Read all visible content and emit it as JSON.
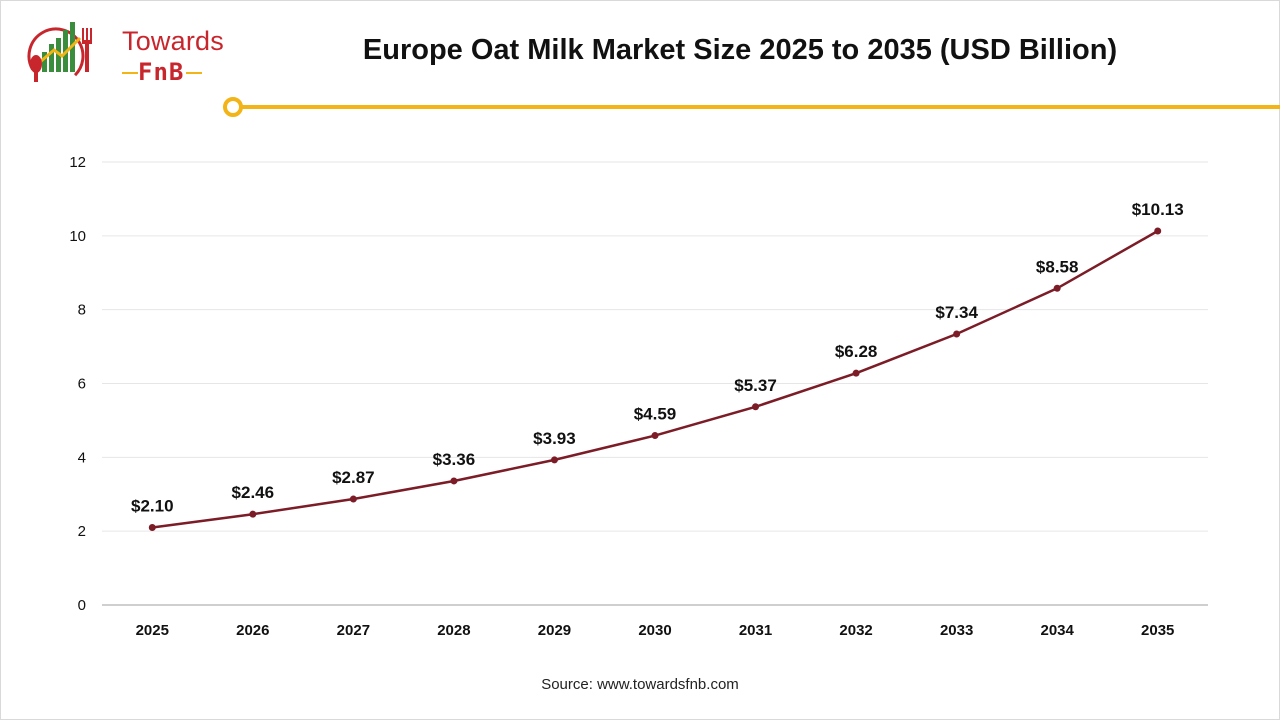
{
  "logo": {
    "line1": "Towards",
    "line2": "FnB",
    "colors": {
      "red": "#c8262d",
      "green": "#3a8d3c",
      "gold": "#f2b416"
    }
  },
  "title": "Europe Oat Milk Market Size 2025 to 2035 (USD Billion)",
  "source": "Source: www.towardsfnb.com",
  "colors": {
    "accent": "#f2b416",
    "line": "#7b1c26",
    "grid": "#e6e6e6"
  },
  "chart_data": {
    "type": "line",
    "title": "Europe Oat Milk Market Size 2025 to 2035 (USD Billion)",
    "xlabel": "",
    "ylabel": "",
    "categories": [
      "2025",
      "2026",
      "2027",
      "2028",
      "2029",
      "2030",
      "2031",
      "2032",
      "2033",
      "2034",
      "2035"
    ],
    "values": [
      2.1,
      2.46,
      2.87,
      3.36,
      3.93,
      4.59,
      5.37,
      6.28,
      7.34,
      8.58,
      10.13
    ],
    "data_labels": [
      "$2.10",
      "$2.46",
      "$2.87",
      "$3.36",
      "$3.93",
      "$4.59",
      "$5.37",
      "$6.28",
      "$7.34",
      "$8.58",
      "$10.13"
    ],
    "ylim": [
      0,
      12
    ],
    "yticks": [
      "0",
      "2",
      "4",
      "6",
      "8",
      "10",
      "12"
    ],
    "grid": true,
    "legend": "none"
  }
}
